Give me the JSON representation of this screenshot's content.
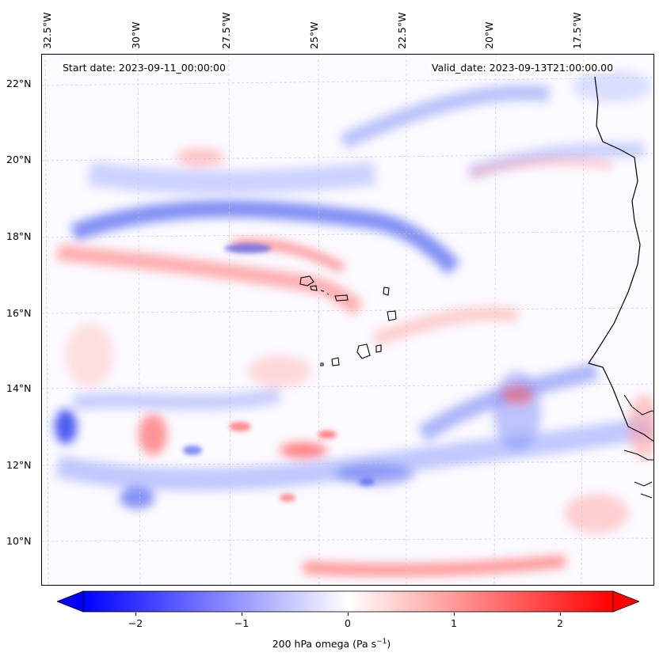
{
  "map": {
    "start_label": "Start date: 2023-09-11_00:00:00",
    "valid_label": "Valid_date: 2023-09-13T21:00:00.00",
    "lon_ticks": [
      "32.5°W",
      "30°W",
      "27.5°W",
      "25°W",
      "22.5°W",
      "20°W",
      "17.5°W"
    ],
    "lat_ticks": [
      "22°N",
      "20°N",
      "18°N",
      "16°N",
      "14°N",
      "12°N",
      "10°N"
    ],
    "colors": {
      "negative": "#0000ff",
      "zero": "#ffffff",
      "positive": "#ff0000"
    }
  },
  "colorbar": {
    "range": [
      -2.7,
      2.7
    ],
    "ticks": [
      "−2",
      "−1",
      "0",
      "1",
      "2"
    ],
    "label": "200 hPa omega (Pa s",
    "label_sup": "−1",
    "label_close": ")"
  }
}
